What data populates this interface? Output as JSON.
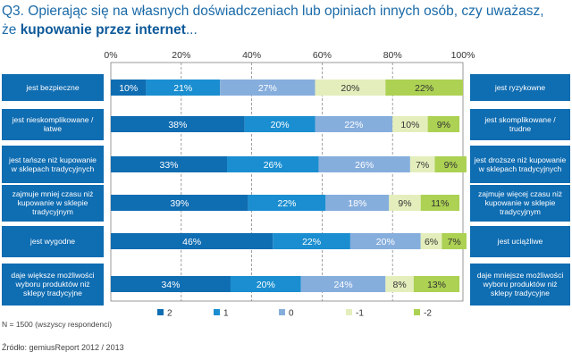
{
  "title": {
    "line1": "Q3. Opierając się na własnych doświadczeniach lub opiniach innych osób, czy uważasz,",
    "line2_prefix": "że ",
    "line2_bold": "kupowanie przez internet",
    "line2_suffix": "..."
  },
  "chart_data": {
    "type": "bar",
    "orientation": "horizontal",
    "stacked": true,
    "xlim": [
      0,
      100
    ],
    "x_ticks": [
      "0%",
      "20%",
      "40%",
      "60%",
      "80%",
      "100%"
    ],
    "rows": [
      {
        "left": "jest bezpieczne",
        "right": "jest ryzykowne",
        "values": [
          10,
          21,
          27,
          20,
          22
        ]
      },
      {
        "left": "jest nieskomplikowane / łatwe",
        "right": "jest skomplikowane / trudne",
        "values": [
          38,
          20,
          22,
          10,
          9
        ]
      },
      {
        "left": "jest tańsze niż kupowanie w sklepach tradycyjnych",
        "right": "jest droższe niż kupowanie w sklepach tradycyjnych",
        "values": [
          33,
          26,
          26,
          7,
          9
        ]
      },
      {
        "left": "zajmuje mniej czasu niż kupowanie w sklepie tradycyjnym",
        "right": "zajmuje więcej czasu niż kupowanie w sklepie tradycyjnym",
        "values": [
          39,
          22,
          18,
          9,
          11
        ]
      },
      {
        "left": "jest wygodne",
        "right": "jest uciążliwe",
        "values": [
          46,
          22,
          20,
          6,
          7
        ]
      },
      {
        "left": "daje większe możliwości wyboru produktów niż sklepy tradycyjne",
        "right": "daje mniejsze możliwości wyboru produktów niż sklepy tradycyjne",
        "values": [
          34,
          20,
          24,
          8,
          13
        ]
      }
    ],
    "series": [
      {
        "name": "2",
        "color": "#0f6db2",
        "text_color": "#ffffff"
      },
      {
        "name": "1",
        "color": "#1a8ed0",
        "text_color": "#ffffff"
      },
      {
        "name": "0",
        "color": "#86aedd",
        "text_color": "#ffffff"
      },
      {
        "name": "-1",
        "color": "#e4eebc",
        "text_color": "#333333"
      },
      {
        "name": "-2",
        "color": "#acd153",
        "text_color": "#333333"
      }
    ],
    "value_suffix": "%"
  },
  "footnote": "N = 1500 (wszyscy respondenci)",
  "source": "Źródło: gemiusReport 2012 / 2013"
}
